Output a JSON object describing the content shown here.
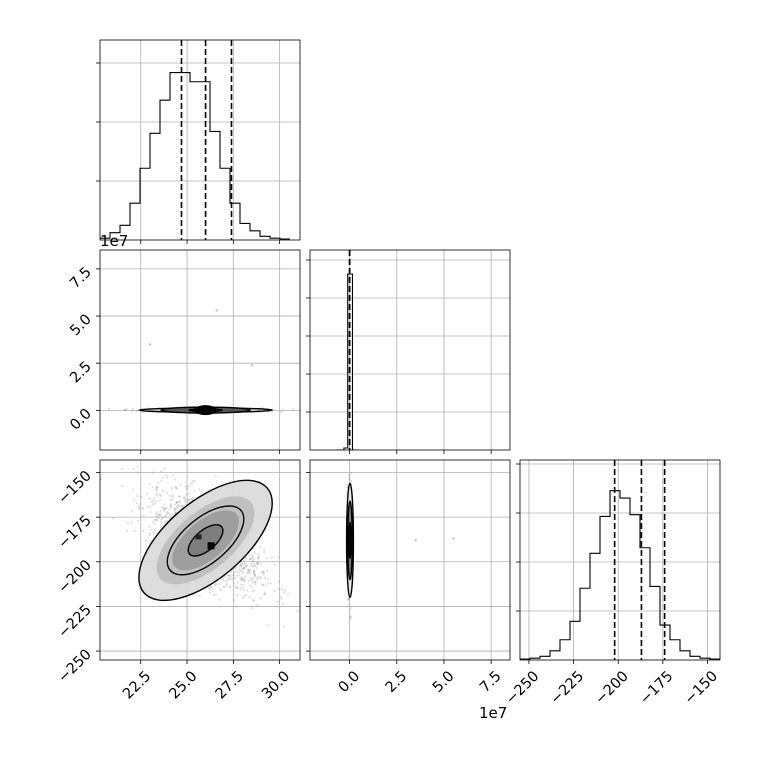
{
  "chart_data": {
    "type": "corner",
    "title": "",
    "grid": true,
    "parameter_labels": [
      "",
      "",
      ""
    ],
    "axis_offsets": {
      "p1": "1e7"
    },
    "quantile_lines_style": "dashed",
    "ranges": {
      "p0": [
        20.3,
        31.1
      ],
      "p1": [
        -21000000,
        85000000
      ],
      "p2": [
        -255,
        -143
      ]
    },
    "ticks": {
      "p0": {
        "values": [
          22.5,
          25.0,
          27.5,
          30.0
        ],
        "labels": [
          "22.5",
          "25.0",
          "27.5",
          "30.0"
        ]
      },
      "p1": {
        "values": [
          0,
          25000000,
          50000000,
          75000000
        ],
        "labels": [
          "0.0",
          "2.5",
          "5.0",
          "7.5"
        ]
      },
      "p2": {
        "values": [
          -250,
          -225,
          -200,
          -175,
          -150
        ],
        "labels": [
          "−250",
          "−225",
          "−200",
          "−175",
          "−150"
        ]
      }
    },
    "histograms": [
      {
        "param": "p0",
        "ylim": [
          0,
          1
        ],
        "bins": {
          "start": 20.3,
          "width": 0.54,
          "counts": [
            0.01,
            0.04,
            0.08,
            0.2,
            0.39,
            0.58,
            0.76,
            0.91,
            0.91,
            0.86,
            0.86,
            0.59,
            0.39,
            0.2,
            0.09,
            0.05,
            0.02,
            0.01,
            0.005
          ]
        },
        "quantiles": [
          24.7,
          26.0,
          27.4
        ]
      },
      {
        "param": "p1",
        "ylim": [
          0,
          1
        ],
        "bins": {
          "start": -21000000,
          "width": 5300000,
          "counts": [
            0.01,
            0.01,
            0.0,
            0.0,
            0.0,
            0.0,
            0.0,
            0.0,
            0.0,
            0.0,
            0.0,
            0.0,
            0.0,
            0.0,
            0.0,
            0.0,
            0.0,
            0.0,
            0.0,
            0.0
          ]
        },
        "peak_bin": {
          "from": -1000000,
          "to": 1500000,
          "value": 0.88
        },
        "quantiles": [
          0,
          0
        ]
      },
      {
        "param": "p2",
        "ylim": [
          0,
          1
        ],
        "bins": {
          "start": -255,
          "width": 5.6,
          "counts": [
            0.005,
            0.01,
            0.02,
            0.05,
            0.11,
            0.21,
            0.39,
            0.58,
            0.78,
            0.92,
            0.88,
            0.79,
            0.61,
            0.4,
            0.19,
            0.11,
            0.05,
            0.02,
            0.01,
            0.005
          ]
        },
        "quantiles": [
          -202,
          -187,
          -174
        ]
      }
    ],
    "scatter_panels": [
      {
        "x": "p0",
        "y": "p1",
        "center": [
          26.0,
          150000
        ],
        "spread": [
          1.5,
          500000
        ],
        "contours": [
          {
            "rx": 0.9,
            "ry": 620000
          },
          {
            "rx": 2.4,
            "ry": 1600000
          },
          {
            "rx": 3.6,
            "ry": 1100000
          }
        ],
        "outliers": [
          [
            26.6,
            53000000
          ],
          [
            23.0,
            35000000
          ],
          [
            28.5,
            24000000
          ]
        ]
      },
      {
        "x": "p0",
        "y": "p2",
        "center": [
          26.0,
          -188
        ],
        "spread": [
          1.5,
          14
        ],
        "correlation": -0.62,
        "contours": [
          {
            "level": 0.39
          },
          {
            "level": 0.86
          },
          {
            "level": 1.5
          }
        ]
      },
      {
        "x": "p1",
        "y": "p2",
        "center": [
          200000,
          -188
        ],
        "spread": [
          650000,
          14
        ],
        "contours": [
          {
            "rx": 600000,
            "ry": 10
          },
          {
            "rx": 1200000,
            "ry": 22
          },
          {
            "rx": 1800000,
            "ry": 32
          }
        ],
        "outliers": [
          [
            35000000,
            -188
          ],
          [
            55000000,
            -187
          ]
        ]
      }
    ]
  }
}
